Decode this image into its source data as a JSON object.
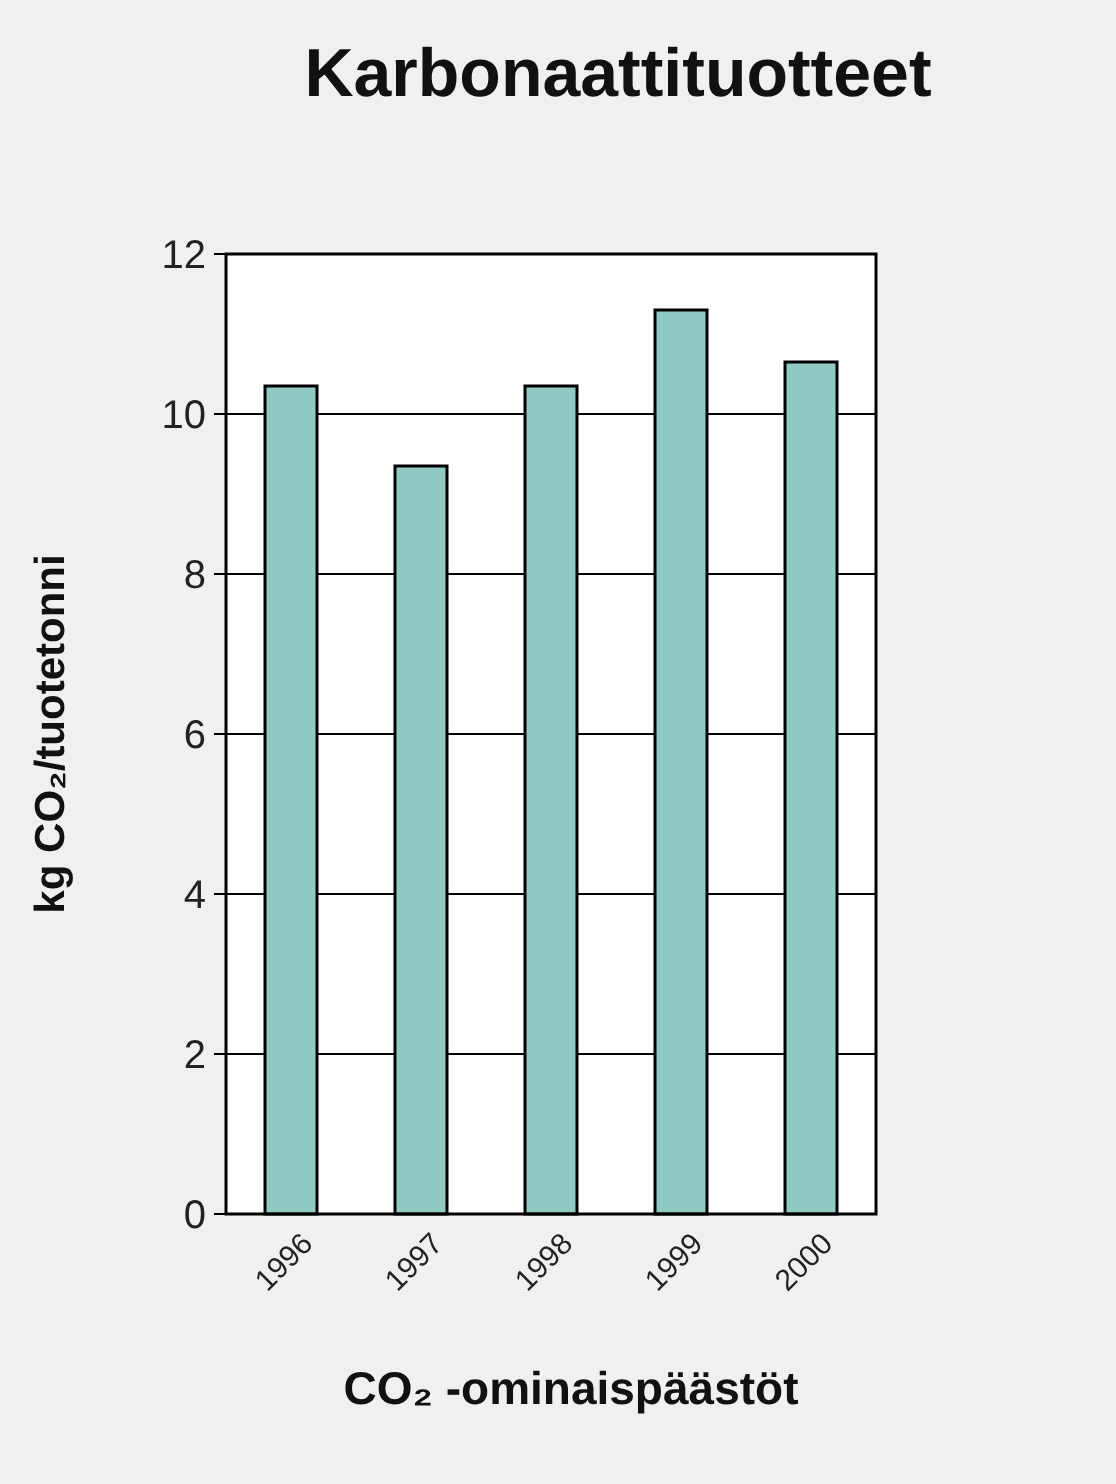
{
  "chart_data": {
    "type": "bar",
    "title": "Karbonaattituotteet",
    "xlabel": "CO₂ -ominaispäästöt",
    "ylabel": "kg CO₂/tuotetonni",
    "categories": [
      "1996",
      "1997",
      "1998",
      "1999",
      "2000"
    ],
    "values": [
      10.35,
      9.35,
      10.35,
      11.3,
      10.65
    ],
    "color": "#8fcbc3",
    "ylim": [
      0,
      12
    ],
    "yticks": [
      0,
      2,
      4,
      6,
      8,
      10,
      12
    ],
    "grid": "y"
  }
}
